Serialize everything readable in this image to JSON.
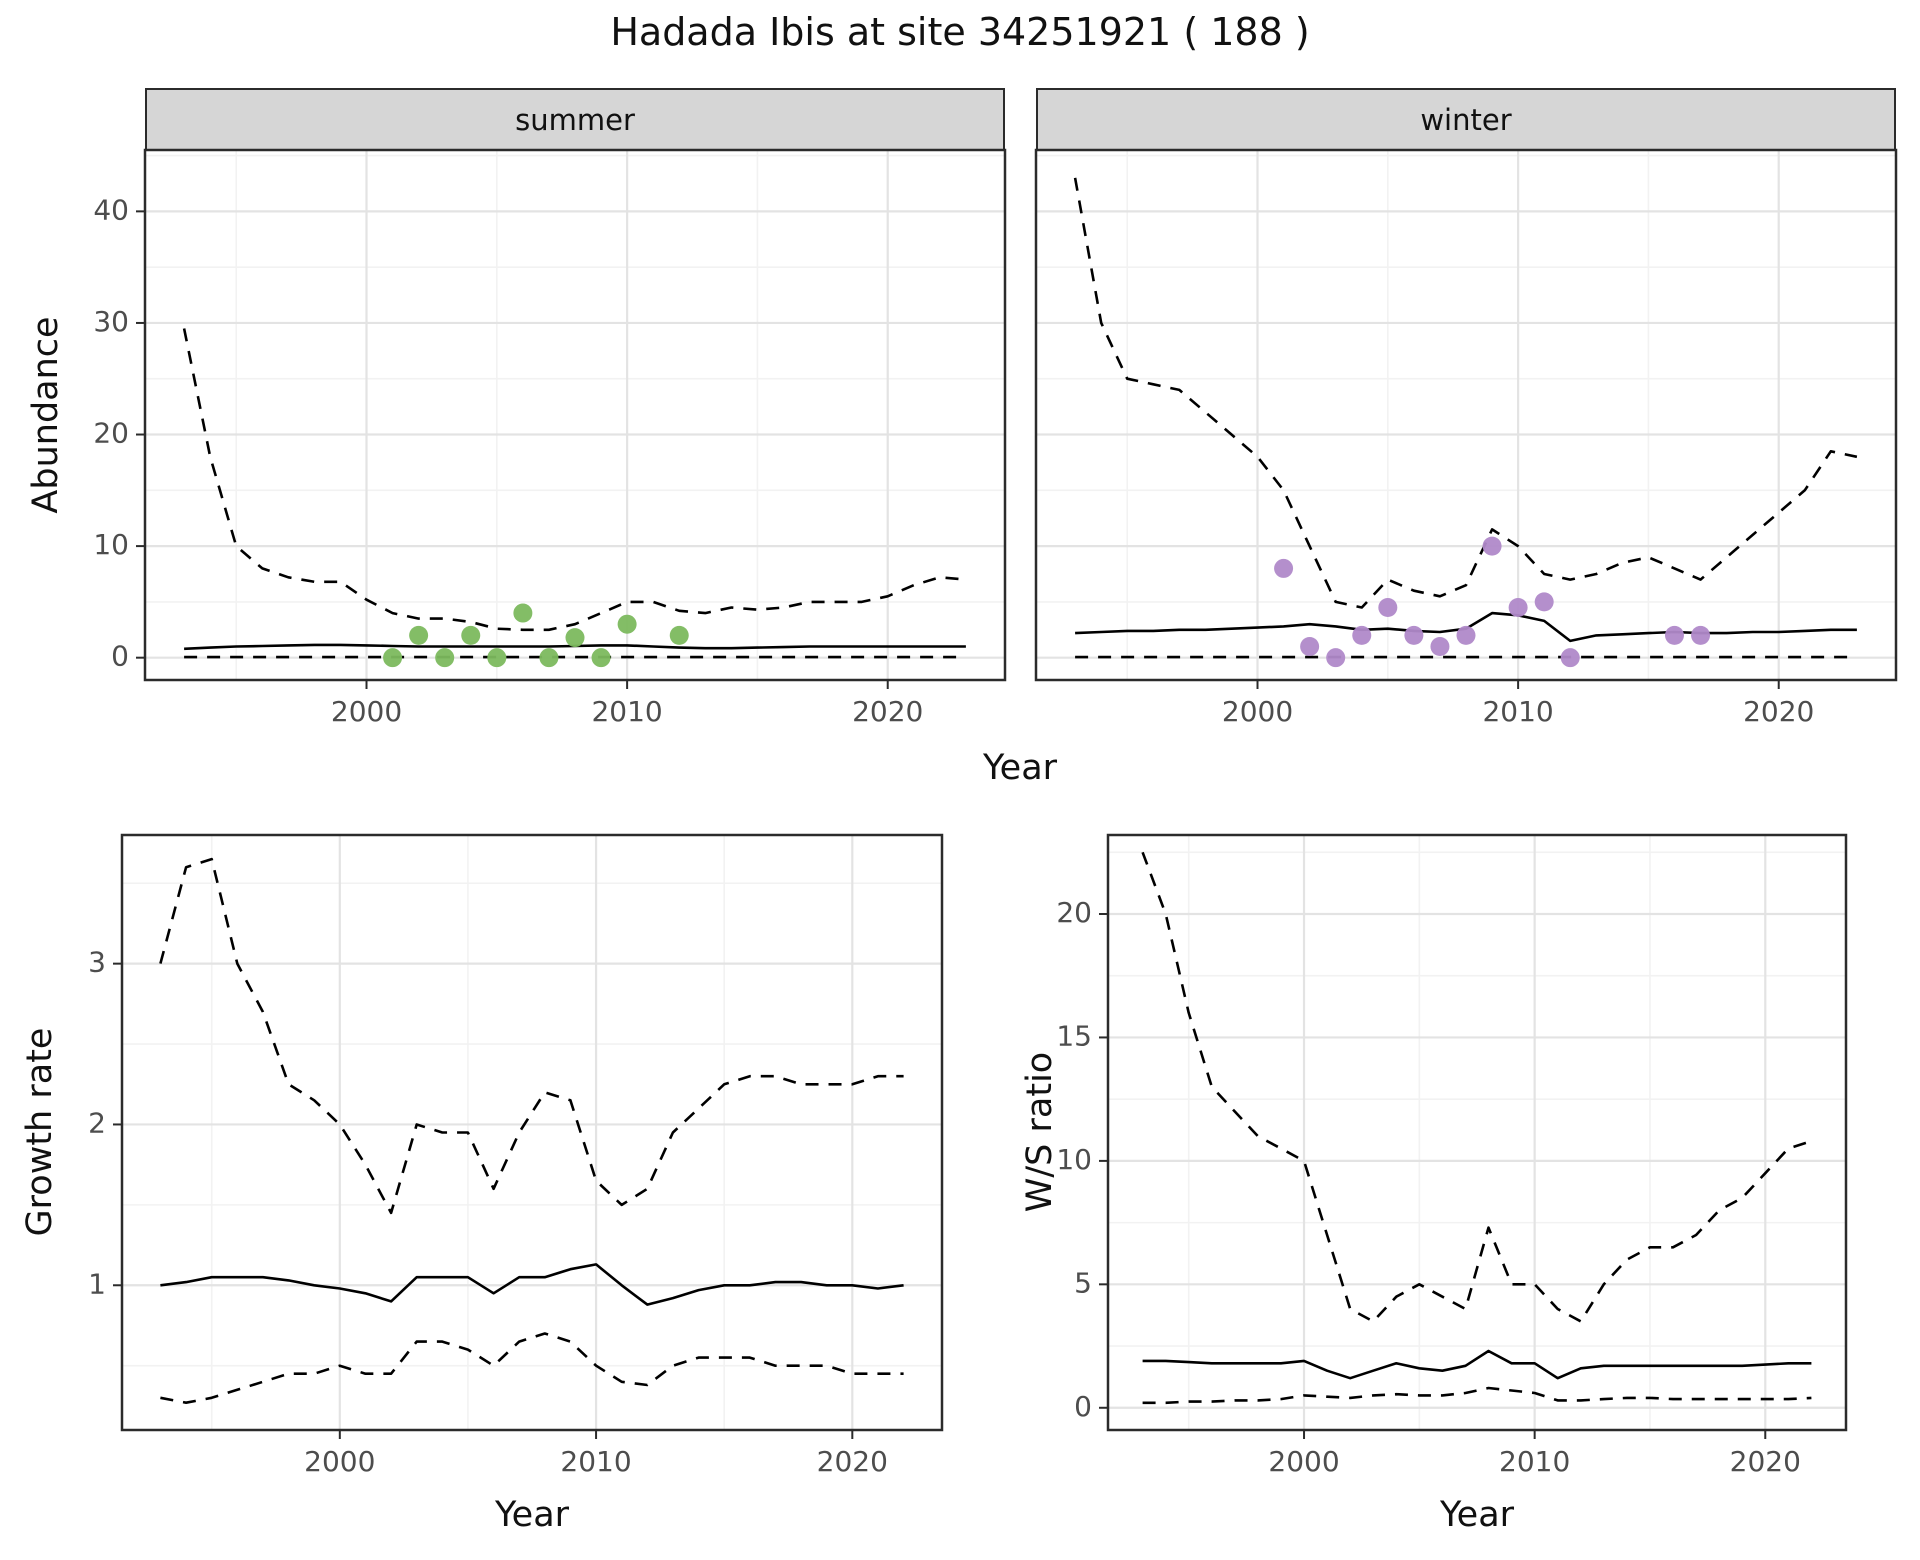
{
  "title": "Hadada Ibis at site 34251921 ( 188 )",
  "style": {
    "line_color": "#000000",
    "grid_major": "#e3e3e3",
    "grid_minor": "#f2f2f2",
    "panel_border": "#2b2b2b",
    "strip_bg": "#d6d6d6",
    "tick_text": "#4d4d4d",
    "summer_point": "#7cb95e",
    "winter_point": "#b089c9"
  },
  "chart_data": [
    {
      "id": "abundance-summer",
      "type": "line",
      "facet": "summer",
      "ylabel": "Abundance",
      "xlabel": "Year",
      "xlim": [
        1991.5,
        2024.5
      ],
      "ylim": [
        -2,
        45.5
      ],
      "xticks": [
        2000,
        2010,
        2020
      ],
      "yticks": [
        0,
        10,
        20,
        30,
        40
      ],
      "x": [
        1993,
        1994,
        1995,
        1996,
        1997,
        1998,
        1999,
        2000,
        2001,
        2002,
        2003,
        2004,
        2005,
        2006,
        2007,
        2008,
        2009,
        2010,
        2011,
        2012,
        2013,
        2014,
        2015,
        2016,
        2017,
        2018,
        2019,
        2020,
        2021,
        2022,
        2023
      ],
      "series": [
        {
          "name": "upper-ci",
          "style": "dashed",
          "y": [
            29.5,
            18,
            10,
            8,
            7.2,
            6.8,
            6.8,
            5.2,
            4,
            3.5,
            3.5,
            3.2,
            2.6,
            2.5,
            2.5,
            3,
            4,
            5,
            5,
            4.2,
            4,
            4.5,
            4.3,
            4.5,
            5,
            5,
            5,
            5.5,
            6.5,
            7.2,
            7
          ]
        },
        {
          "name": "median",
          "style": "solid",
          "y": [
            0.8,
            0.9,
            1.0,
            1.05,
            1.1,
            1.15,
            1.15,
            1.1,
            1.05,
            1.0,
            1.0,
            1.0,
            1.0,
            1.0,
            1.0,
            1.05,
            1.1,
            1.1,
            1.0,
            0.9,
            0.85,
            0.85,
            0.9,
            0.95,
            1.0,
            1.0,
            1.0,
            1.0,
            1.0,
            1.0,
            1.0
          ]
        },
        {
          "name": "lower-ci",
          "style": "dashed",
          "y": [
            0.05,
            0.05,
            0.05,
            0.05,
            0.05,
            0.05,
            0.05,
            0.05,
            0.05,
            0.05,
            0.05,
            0.05,
            0.05,
            0.05,
            0.05,
            0.05,
            0.05,
            0.05,
            0.05,
            0.05,
            0.05,
            0.05,
            0.05,
            0.05,
            0.05,
            0.05,
            0.05,
            0.05,
            0.05,
            0.05,
            0.05
          ]
        }
      ],
      "points": {
        "name": "observed-counts-summer",
        "color": "#7cb95e",
        "x": [
          2001,
          2002,
          2003,
          2004,
          2005,
          2006,
          2007,
          2008,
          2009,
          2010,
          2012
        ],
        "y": [
          0,
          2,
          0,
          2,
          0,
          4,
          0,
          1.8,
          0,
          3,
          2
        ]
      }
    },
    {
      "id": "abundance-winter",
      "type": "line",
      "facet": "winter",
      "ylabel": "Abundance",
      "xlabel": "Year",
      "xlim": [
        1991.5,
        2024.5
      ],
      "ylim": [
        -2,
        45.5
      ],
      "xticks": [
        2000,
        2010,
        2020
      ],
      "yticks": [
        0,
        10,
        20,
        30,
        40
      ],
      "x": [
        1993,
        1994,
        1995,
        1996,
        1997,
        1998,
        1999,
        2000,
        2001,
        2002,
        2003,
        2004,
        2005,
        2006,
        2007,
        2008,
        2009,
        2010,
        2011,
        2012,
        2013,
        2014,
        2015,
        2016,
        2017,
        2018,
        2019,
        2020,
        2021,
        2022,
        2023
      ],
      "series": [
        {
          "name": "upper-ci",
          "style": "dashed",
          "y": [
            43,
            30,
            25,
            24.5,
            24,
            22,
            20,
            18,
            15,
            10,
            5,
            4.5,
            7,
            6,
            5.5,
            6.5,
            11.5,
            10,
            7.5,
            7,
            7.5,
            8.5,
            9,
            8,
            7,
            9,
            11,
            13,
            15,
            18.5,
            18
          ]
        },
        {
          "name": "median",
          "style": "solid",
          "y": [
            2.2,
            2.3,
            2.4,
            2.4,
            2.5,
            2.5,
            2.6,
            2.7,
            2.8,
            3.0,
            2.8,
            2.5,
            2.6,
            2.4,
            2.3,
            2.6,
            4.0,
            3.8,
            3.3,
            1.5,
            2.0,
            2.1,
            2.2,
            2.3,
            2.2,
            2.2,
            2.3,
            2.3,
            2.4,
            2.5,
            2.5
          ]
        },
        {
          "name": "lower-ci",
          "style": "dashed",
          "y": [
            0.05,
            0.05,
            0.05,
            0.05,
            0.05,
            0.05,
            0.05,
            0.05,
            0.05,
            0.05,
            0.05,
            0.05,
            0.05,
            0.05,
            0.05,
            0.05,
            0.05,
            0.05,
            0.05,
            0.05,
            0.05,
            0.05,
            0.05,
            0.05,
            0.05,
            0.05,
            0.05,
            0.05,
            0.05,
            0.05,
            0.05
          ]
        }
      ],
      "points": {
        "name": "observed-counts-winter",
        "color": "#b089c9",
        "x": [
          2001,
          2002,
          2003,
          2004,
          2005,
          2006,
          2007,
          2008,
          2009,
          2010,
          2011,
          2012,
          2016,
          2017
        ],
        "y": [
          8,
          1,
          0,
          2,
          4.5,
          2,
          1,
          2,
          10,
          4.5,
          5,
          0,
          2,
          2
        ]
      }
    },
    {
      "id": "growth-rate",
      "type": "line",
      "facet": "",
      "ylabel": "Growth rate",
      "xlabel": "Year",
      "xlim": [
        1991.5,
        2023.5
      ],
      "ylim": [
        0.1,
        3.8
      ],
      "xticks": [
        2000,
        2010,
        2020
      ],
      "yticks": [
        1,
        2,
        3
      ],
      "x": [
        1993,
        1994,
        1995,
        1996,
        1997,
        1998,
        1999,
        2000,
        2001,
        2002,
        2003,
        2004,
        2005,
        2006,
        2007,
        2008,
        2009,
        2010,
        2011,
        2012,
        2013,
        2014,
        2015,
        2016,
        2017,
        2018,
        2019,
        2020,
        2021,
        2022
      ],
      "series": [
        {
          "name": "upper-ci",
          "style": "dashed",
          "y": [
            3.0,
            3.6,
            3.65,
            3.0,
            2.7,
            2.25,
            2.15,
            2.0,
            1.75,
            1.45,
            2.0,
            1.95,
            1.95,
            1.6,
            1.95,
            2.2,
            2.15,
            1.65,
            1.5,
            1.6,
            1.95,
            2.1,
            2.25,
            2.3,
            2.3,
            2.25,
            2.25,
            2.25,
            2.3,
            2.3
          ]
        },
        {
          "name": "median",
          "style": "solid",
          "y": [
            1.0,
            1.02,
            1.05,
            1.05,
            1.05,
            1.03,
            1.0,
            0.98,
            0.95,
            0.9,
            1.05,
            1.05,
            1.05,
            0.95,
            1.05,
            1.05,
            1.1,
            1.13,
            1.0,
            0.88,
            0.92,
            0.97,
            1.0,
            1.0,
            1.02,
            1.02,
            1.0,
            1.0,
            0.98,
            1.0
          ]
        },
        {
          "name": "lower-ci",
          "style": "dashed",
          "y": [
            0.3,
            0.27,
            0.3,
            0.35,
            0.4,
            0.45,
            0.45,
            0.5,
            0.45,
            0.45,
            0.65,
            0.65,
            0.6,
            0.5,
            0.65,
            0.7,
            0.65,
            0.5,
            0.4,
            0.38,
            0.5,
            0.55,
            0.55,
            0.55,
            0.5,
            0.5,
            0.5,
            0.45,
            0.45,
            0.45
          ]
        }
      ],
      "points": null
    },
    {
      "id": "ws-ratio",
      "type": "line",
      "facet": "",
      "ylabel": "W/S ratio",
      "xlabel": "Year",
      "xlim": [
        1991.5,
        2023.5
      ],
      "ylim": [
        -0.9,
        23.2
      ],
      "xticks": [
        2000,
        2010,
        2020
      ],
      "yticks": [
        0,
        5,
        10,
        15,
        20
      ],
      "x": [
        1993,
        1994,
        1995,
        1996,
        1997,
        1998,
        1999,
        2000,
        2001,
        2002,
        2003,
        2004,
        2005,
        2006,
        2007,
        2008,
        2009,
        2010,
        2011,
        2012,
        2013,
        2014,
        2015,
        2016,
        2017,
        2018,
        2019,
        2020,
        2021,
        2022
      ],
      "series": [
        {
          "name": "upper-ci",
          "style": "dashed",
          "y": [
            22.5,
            20,
            16,
            13,
            12,
            11,
            10.5,
            10,
            7,
            4,
            3.5,
            4.5,
            5,
            4.5,
            4,
            7.3,
            5,
            5,
            4,
            3.5,
            5,
            6,
            6.5,
            6.5,
            7,
            8,
            8.5,
            9.5,
            10.5,
            10.8
          ]
        },
        {
          "name": "median",
          "style": "solid",
          "y": [
            1.9,
            1.9,
            1.85,
            1.8,
            1.8,
            1.8,
            1.8,
            1.9,
            1.5,
            1.2,
            1.5,
            1.8,
            1.6,
            1.5,
            1.7,
            2.3,
            1.8,
            1.8,
            1.2,
            1.6,
            1.7,
            1.7,
            1.7,
            1.7,
            1.7,
            1.7,
            1.7,
            1.75,
            1.8,
            1.8
          ]
        },
        {
          "name": "lower-ci",
          "style": "dashed",
          "y": [
            0.2,
            0.2,
            0.25,
            0.25,
            0.3,
            0.3,
            0.35,
            0.5,
            0.45,
            0.4,
            0.5,
            0.55,
            0.5,
            0.5,
            0.6,
            0.8,
            0.7,
            0.6,
            0.3,
            0.3,
            0.35,
            0.4,
            0.4,
            0.35,
            0.35,
            0.35,
            0.35,
            0.35,
            0.35,
            0.4
          ]
        }
      ],
      "points": null
    }
  ]
}
